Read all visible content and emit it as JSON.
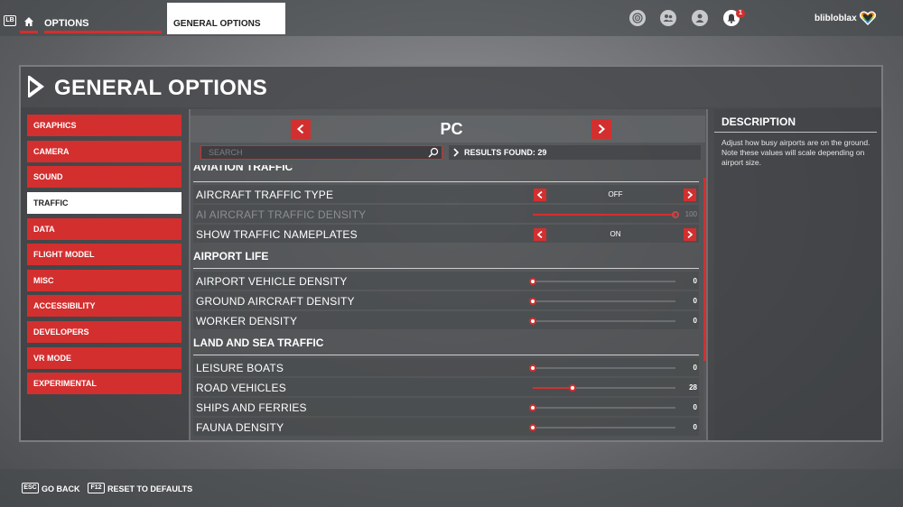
{
  "topbar": {
    "lb_key": "LB",
    "options_tab": "OPTIONS",
    "general_tab": "GENERAL OPTIONS",
    "notification_count": "1",
    "username": "blibloblax"
  },
  "page": {
    "title": "GENERAL OPTIONS"
  },
  "sidebar": {
    "items": [
      {
        "label": "GRAPHICS"
      },
      {
        "label": "CAMERA"
      },
      {
        "label": "SOUND"
      },
      {
        "label": "TRAFFIC"
      },
      {
        "label": "DATA"
      },
      {
        "label": "FLIGHT MODEL"
      },
      {
        "label": "MISC"
      },
      {
        "label": "ACCESSIBILITY"
      },
      {
        "label": "DEVELOPERS"
      },
      {
        "label": "VR MODE"
      },
      {
        "label": "EXPERIMENTAL"
      }
    ],
    "active": "TRAFFIC"
  },
  "platform": {
    "label": "PC"
  },
  "search": {
    "placeholder": "SEARCH",
    "value": ""
  },
  "results": {
    "label": "RESULTS FOUND: 29"
  },
  "sections": {
    "aviation": {
      "title": "AVIATION TRAFFIC",
      "options": [
        {
          "label": "AIRCRAFT TRAFFIC TYPE",
          "type": "selector",
          "value": "OFF"
        },
        {
          "label": "AI AIRCRAFT TRAFFIC DENSITY",
          "type": "slider",
          "value": "100",
          "level": 1.0,
          "disabled": true
        },
        {
          "label": "SHOW TRAFFIC NAMEPLATES",
          "type": "selector",
          "value": "ON"
        }
      ]
    },
    "airport": {
      "title": "AIRPORT LIFE",
      "options": [
        {
          "label": "AIRPORT VEHICLE DENSITY",
          "type": "slider",
          "value": "0",
          "level": 0.0
        },
        {
          "label": "GROUND AIRCRAFT DENSITY",
          "type": "slider",
          "value": "0",
          "level": 0.0
        },
        {
          "label": "WORKER DENSITY",
          "type": "slider",
          "value": "0",
          "level": 0.0
        }
      ]
    },
    "land_sea": {
      "title": "LAND AND SEA TRAFFIC",
      "options": [
        {
          "label": "LEISURE BOATS",
          "type": "slider",
          "value": "0",
          "level": 0.0
        },
        {
          "label": "ROAD VEHICLES",
          "type": "slider",
          "value": "28",
          "level": 0.28
        },
        {
          "label": "SHIPS AND FERRIES",
          "type": "slider",
          "value": "0",
          "level": 0.0
        },
        {
          "label": "FAUNA DENSITY",
          "type": "slider",
          "value": "0",
          "level": 0.0
        }
      ]
    }
  },
  "description": {
    "title": "DESCRIPTION",
    "text": "Adjust how busy airports are on the ground. Note these values will scale depending on airport size."
  },
  "footer": {
    "back_key": "ESC",
    "back_label": "GO BACK",
    "reset_key": "F12",
    "reset_label": "RESET TO DEFAULTS"
  },
  "colors": {
    "accent": "#d32f2f",
    "panel": "#3a3c3f",
    "text": "#ffffff"
  }
}
